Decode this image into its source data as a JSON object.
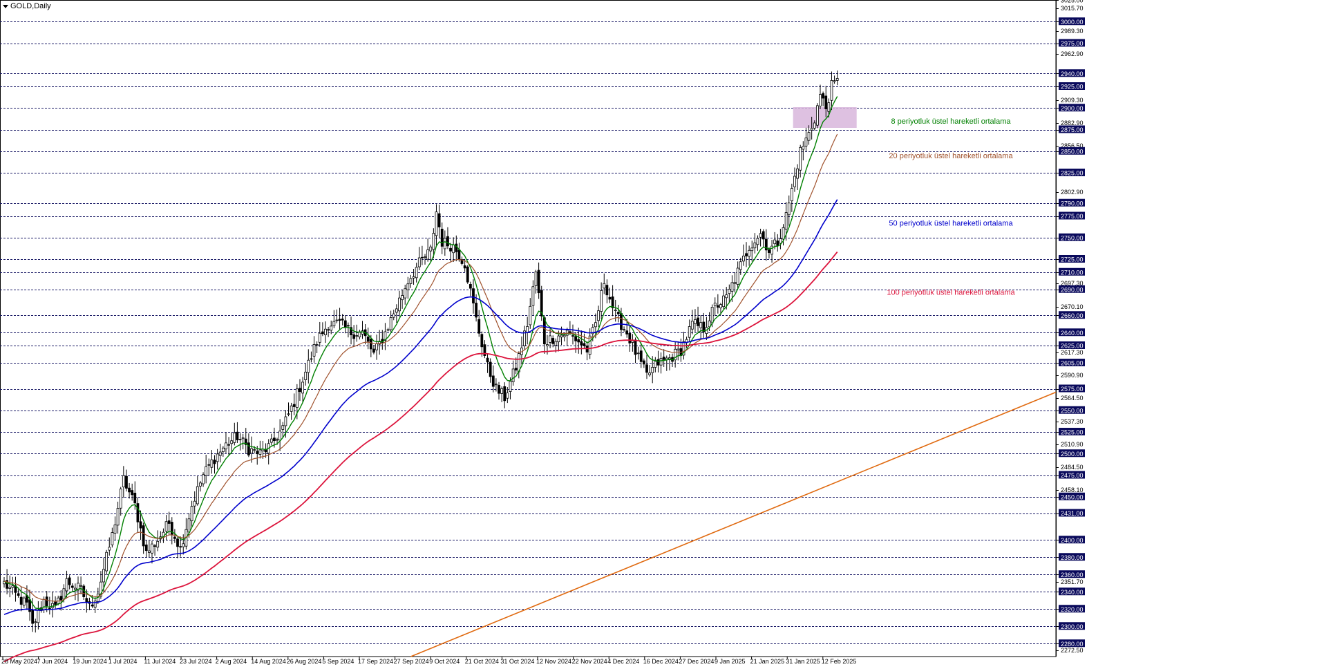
{
  "window": {
    "title": "GOLD,Daily"
  },
  "colors": {
    "background": "#ffffff",
    "level_line": "#1a1a66",
    "level_badge": "#0a0a5c",
    "candle_up": "#ffffff",
    "candle_down": "#000000",
    "ema8": "#008000",
    "ema20": "#a0522d",
    "ema50": "#0000cc",
    "ema100": "#dc143c",
    "trendline": "#e06a10",
    "zone": "#d8b6dc"
  },
  "annotations": [
    {
      "text": "8 periyotluk üstel hareketli ortalama",
      "color": "#008000",
      "price": 2885
    },
    {
      "text": "20 periyotluk üstel hareketli ortalama",
      "color": "#a0522d",
      "price": 2845
    },
    {
      "text": "50 periyotluk üstel hareketli ortalama",
      "color": "#0000cc",
      "price": 2767
    },
    {
      "text": "100 periyotluk üstel hareketli ortalama",
      "color": "#dc143c",
      "price": 2687
    }
  ],
  "chart_data": {
    "type": "candlestick",
    "title": "GOLD,Daily",
    "ylim": [
      2265,
      3025
    ],
    "x_labels": [
      "28 May 2024",
      "7 Jun 2024",
      "19 Jun 2024",
      "1 Jul 2024",
      "11 Jul 2024",
      "23 Jul 2024",
      "2 Aug 2024",
      "14 Aug 2024",
      "26 Aug 2024",
      "5 Sep 2024",
      "17 Sep 2024",
      "27 Sep 2024",
      "9 Oct 2024",
      "21 Oct 2024",
      "31 Oct 2024",
      "12 Nov 2024",
      "22 Nov 2024",
      "4 Dec 2024",
      "16 Dec 2024",
      "27 Dec 2024",
      "9 Jan 2025",
      "21 Jan 2025",
      "31 Jan 2025",
      "12 Feb 2025"
    ],
    "y_ticks": [
      "3025.00",
      "3015.70",
      "3000.00",
      "2989.30",
      "2975.00",
      "2962.90",
      "2940.00",
      "2925.00",
      "2909.30",
      "2900.00",
      "2882.90",
      "2875.00",
      "2856.50",
      "2850.00",
      "2825.00",
      "2802.90",
      "2790.00",
      "2775.00",
      "2750.00",
      "2725.00",
      "2710.00",
      "2697.30",
      "2690.00",
      "2670.10",
      "2660.00",
      "2640.00",
      "2625.00",
      "2617.30",
      "2605.00",
      "2590.90",
      "2575.00",
      "2564.50",
      "2550.00",
      "2537.30",
      "2525.00",
      "2510.90",
      "2500.00",
      "2484.50",
      "2475.00",
      "2458.10",
      "2450.00",
      "2431.00",
      "2400.00",
      "2380.00",
      "2360.00",
      "2351.70",
      "2340.00",
      "2320.00",
      "2300.00",
      "2280.00",
      "2272.50"
    ],
    "levels": [
      3000,
      2975,
      2940,
      2925,
      2900,
      2875,
      2850,
      2825,
      2790,
      2775,
      2750,
      2725,
      2710,
      2690,
      2660,
      2640,
      2625,
      2605,
      2575,
      2550,
      2525,
      2500,
      2475,
      2450,
      2431,
      2400,
      2380,
      2360,
      2340,
      2320,
      2300,
      2280
    ],
    "zone": {
      "from": 2877,
      "to": 2901
    },
    "trendline": {
      "start": {
        "x": "5 Sep 2024",
        "y": 2265
      },
      "end": {
        "price_at_right_edge": 2571
      }
    },
    "waypoints": [
      [
        0,
        2350
      ],
      [
        6,
        2330
      ],
      [
        8,
        2325
      ],
      [
        10,
        2300
      ],
      [
        14,
        2330
      ],
      [
        18,
        2320
      ],
      [
        22,
        2352
      ],
      [
        27,
        2342
      ],
      [
        30,
        2322
      ],
      [
        33,
        2340
      ],
      [
        38,
        2405
      ],
      [
        42,
        2470
      ],
      [
        46,
        2440
      ],
      [
        50,
        2385
      ],
      [
        54,
        2400
      ],
      [
        58,
        2420
      ],
      [
        62,
        2390
      ],
      [
        66,
        2440
      ],
      [
        70,
        2475
      ],
      [
        74,
        2495
      ],
      [
        78,
        2510
      ],
      [
        82,
        2520
      ],
      [
        86,
        2505
      ],
      [
        90,
        2500
      ],
      [
        94,
        2510
      ],
      [
        98,
        2530
      ],
      [
        102,
        2560
      ],
      [
        106,
        2595
      ],
      [
        110,
        2630
      ],
      [
        114,
        2650
      ],
      [
        118,
        2650
      ],
      [
        122,
        2640
      ],
      [
        126,
        2640
      ],
      [
        130,
        2615
      ],
      [
        134,
        2640
      ],
      [
        138,
        2670
      ],
      [
        142,
        2700
      ],
      [
        146,
        2720
      ],
      [
        150,
        2735
      ],
      [
        152,
        2780
      ],
      [
        154,
        2745
      ],
      [
        158,
        2740
      ],
      [
        162,
        2720
      ],
      [
        166,
        2655
      ],
      [
        170,
        2600
      ],
      [
        173,
        2575
      ],
      [
        176,
        2565
      ],
      [
        180,
        2600
      ],
      [
        184,
        2650
      ],
      [
        187,
        2710
      ],
      [
        190,
        2630
      ],
      [
        194,
        2635
      ],
      [
        198,
        2640
      ],
      [
        202,
        2630
      ],
      [
        205,
        2620
      ],
      [
        208,
        2650
      ],
      [
        211,
        2700
      ],
      [
        215,
        2660
      ],
      [
        219,
        2640
      ],
      [
        223,
        2610
      ],
      [
        226,
        2590
      ],
      [
        230,
        2605
      ],
      [
        234,
        2610
      ],
      [
        238,
        2620
      ],
      [
        242,
        2650
      ],
      [
        246,
        2645
      ],
      [
        250,
        2670
      ],
      [
        254,
        2680
      ],
      [
        258,
        2710
      ],
      [
        262,
        2740
      ],
      [
        266,
        2755
      ],
      [
        269,
        2735
      ],
      [
        272,
        2745
      ],
      [
        275,
        2775
      ],
      [
        278,
        2820
      ],
      [
        280,
        2850
      ],
      [
        283,
        2870
      ],
      [
        285,
        2888
      ],
      [
        287,
        2915
      ],
      [
        289,
        2900
      ],
      [
        291,
        2925
      ],
      [
        293,
        2930
      ]
    ],
    "series": [
      {
        "name": "8 periyotluk üstel hareketli ortalama",
        "period": 8
      },
      {
        "name": "20 periyotluk üstel hareketli ortalama",
        "period": 20
      },
      {
        "name": "50 periyotluk üstel hareketli ortalama",
        "period": 50
      },
      {
        "name": "100 periyotluk üstel hareketli ortalama",
        "period": 100
      }
    ]
  }
}
